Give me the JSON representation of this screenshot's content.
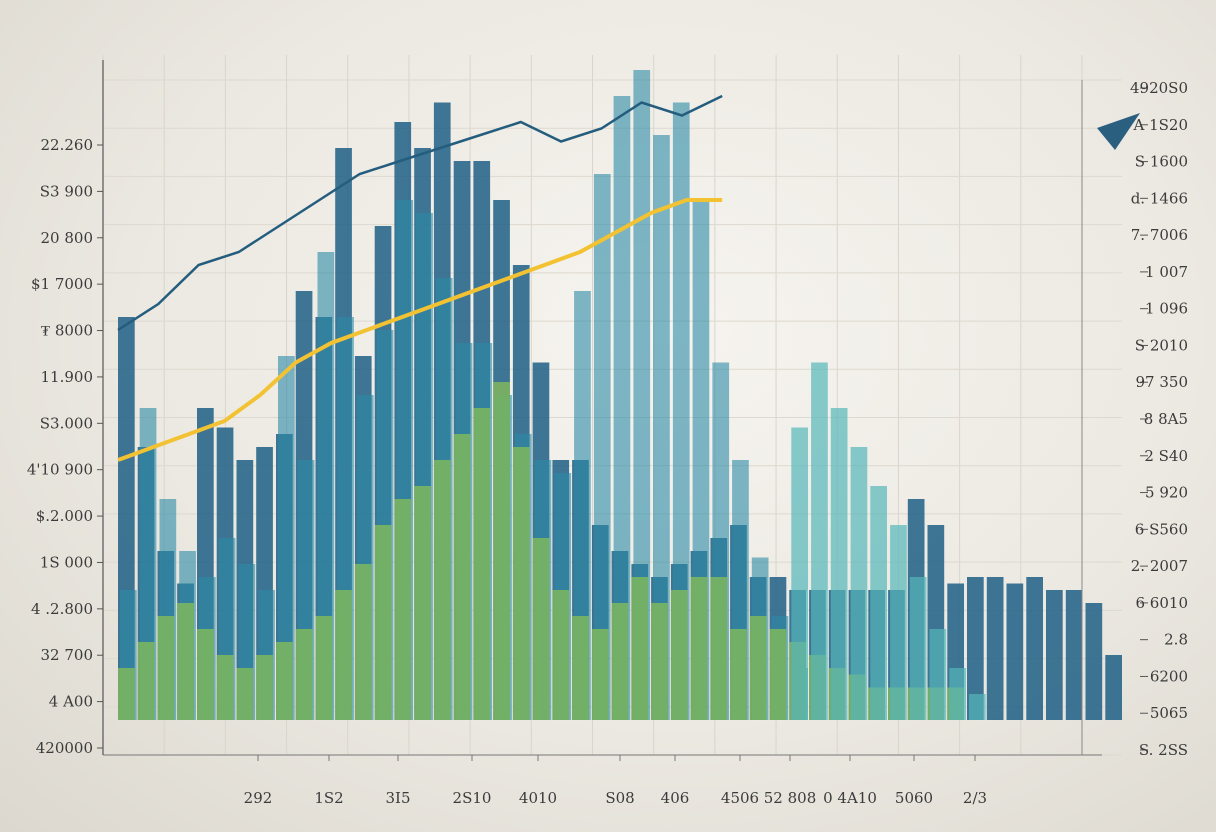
{
  "chart_data": {
    "type": "bar",
    "title": "",
    "xlabel": "",
    "ylabel": "",
    "grid": true,
    "left_tick_labels": [
      "22.260",
      "S3 900",
      "20 800",
      "$1 7000",
      "₮ 8000",
      "11.900",
      "S3.000",
      "4'10 900",
      "$.2.000",
      "1S 000",
      "4 .2.800",
      "32 700",
      "4 A00",
      "420000"
    ],
    "right_tick_labels": [
      "4920S0",
      "A 1S20",
      "S 1600",
      "d. 1466",
      "7. 7006",
      "1 007",
      "1 096",
      "S 2010",
      "97 350",
      "8 8A5",
      "2 S40",
      "5 920",
      "6 S560",
      "2. 2007",
      "6 6010",
      "2.8",
      "6200",
      "5065",
      "S. 2SS"
    ],
    "x_tick_labels": [
      "292",
      "1S2",
      "3I5",
      "2S10",
      "4010",
      "S08",
      "406",
      "4506",
      "52 808",
      "0 4A10",
      "5060",
      "2/3"
    ],
    "colors": {
      "bars_dark": "#1f5f85",
      "bars_mid": "#2b8aa6",
      "bars_teal": "#56b6b9",
      "bars_green": "#95c94c",
      "yellow_trend": "#f2c232",
      "line_main": "#245d7e",
      "arrow": "#2a5f80"
    },
    "series": [
      {
        "values": [
          62,
          42,
          26,
          21,
          48,
          45,
          40,
          42,
          44,
          66,
          62,
          88,
          56,
          76,
          92,
          88,
          95,
          86,
          86,
          80,
          70,
          55,
          40,
          40,
          30,
          26,
          24,
          22,
          24,
          26,
          28,
          30,
          22,
          22,
          20,
          20,
          20,
          20,
          20,
          20,
          34,
          30,
          21,
          22,
          22,
          21,
          22,
          20,
          20,
          18,
          10
        ]
      },
      {
        "values": [
          20,
          48,
          34,
          26,
          22,
          28,
          24,
          20,
          56,
          40,
          72,
          62,
          50,
          60,
          80,
          78,
          68,
          58,
          58,
          50,
          44,
          40,
          38,
          66,
          84,
          96,
          100,
          90,
          95,
          80,
          55,
          40,
          25,
          16,
          8,
          0,
          0,
          0,
          0,
          0,
          0,
          0,
          0,
          0,
          0,
          0,
          0,
          0,
          0,
          0,
          0
        ]
      },
      {
        "values": [
          8,
          12,
          16,
          18,
          14,
          10,
          8,
          10,
          12,
          14,
          16,
          20,
          24,
          30,
          34,
          36,
          40,
          44,
          48,
          52,
          42,
          28,
          20,
          16,
          14,
          18,
          22,
          18,
          20,
          22,
          22,
          14,
          16,
          14,
          12,
          10,
          8,
          7,
          5,
          5,
          5,
          5,
          5,
          0,
          0,
          0,
          0,
          0,
          0,
          0,
          0
        ]
      },
      {
        "values": [
          0,
          0,
          0,
          0,
          0,
          0,
          0,
          0,
          0,
          0,
          0,
          0,
          0,
          0,
          0,
          0,
          0,
          0,
          0,
          0,
          0,
          0,
          0,
          0,
          0,
          0,
          0,
          0,
          0,
          0,
          0,
          0,
          0,
          0,
          45,
          55,
          48,
          42,
          36,
          30,
          22,
          14,
          8,
          4,
          0,
          0,
          0,
          0,
          0,
          0,
          0
        ]
      },
      {
        "values": [
          0,
          0,
          0,
          0,
          0,
          0,
          0,
          0,
          0,
          0,
          0,
          0,
          0,
          0,
          0,
          0,
          0,
          0,
          0,
          0,
          0,
          0,
          0,
          0,
          0,
          0,
          0,
          0,
          0,
          0,
          0,
          0,
          0,
          0,
          0,
          0,
          0,
          0,
          0,
          0,
          0,
          0,
          0,
          0,
          0,
          0,
          0,
          0,
          0,
          0,
          0
        ]
      }
    ],
    "trend_line": [
      [
        0,
        40
      ],
      [
        1,
        42
      ],
      [
        2,
        44
      ],
      [
        3,
        46
      ],
      [
        4,
        50
      ],
      [
        5,
        55
      ],
      [
        6,
        58
      ],
      [
        7,
        60
      ],
      [
        8,
        62
      ],
      [
        9,
        64
      ],
      [
        10,
        66
      ],
      [
        11,
        68
      ],
      [
        12,
        70
      ],
      [
        13,
        72
      ],
      [
        14,
        75
      ],
      [
        15,
        78
      ],
      [
        16,
        80
      ],
      [
        17,
        80
      ]
    ],
    "main_line": [
      [
        0,
        60
      ],
      [
        1,
        64
      ],
      [
        2,
        70
      ],
      [
        3,
        72
      ],
      [
        4,
        76
      ],
      [
        5,
        80
      ],
      [
        6,
        84
      ],
      [
        7,
        86
      ],
      [
        8,
        88
      ],
      [
        9,
        90
      ],
      [
        10,
        92
      ],
      [
        11,
        89
      ],
      [
        12,
        91
      ],
      [
        13,
        95
      ],
      [
        14,
        93
      ],
      [
        15,
        96
      ]
    ]
  }
}
